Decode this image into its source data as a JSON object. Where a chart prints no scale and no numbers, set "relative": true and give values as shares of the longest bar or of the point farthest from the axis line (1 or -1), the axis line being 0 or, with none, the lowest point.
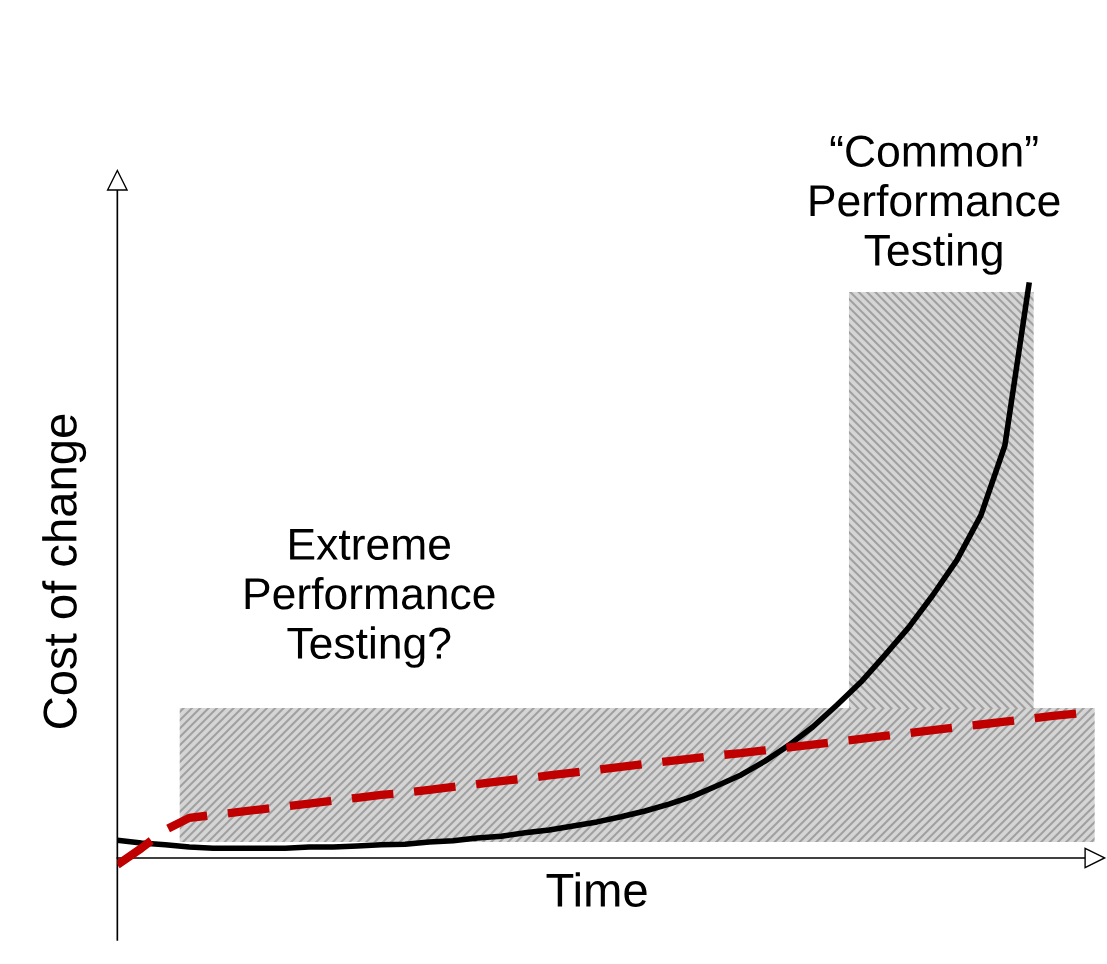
{
  "chart_data": {
    "type": "line",
    "relative": true,
    "xlabel": "Time",
    "ylabel": "Cost of change",
    "categories": [
      null,
      null,
      null,
      null,
      null,
      null,
      null,
      null,
      null,
      null,
      null,
      null,
      null,
      null,
      null,
      null,
      null,
      null,
      null,
      null,
      null,
      null,
      null,
      null,
      null,
      null,
      null,
      null,
      null,
      null,
      null,
      null,
      null,
      null,
      null,
      null,
      null,
      null,
      null,
      null,
      null
    ],
    "series": [
      {
        "color": "#000000",
        "line_style": "solid",
        "values": [
          0.031,
          0.026,
          0.023,
          0.019,
          0.017,
          0.017,
          0.017,
          0.017,
          0.019,
          0.019,
          0.021,
          0.023,
          0.024,
          0.028,
          0.03,
          0.035,
          0.038,
          0.044,
          0.049,
          0.056,
          0.063,
          0.072,
          0.082,
          0.094,
          0.108,
          0.126,
          0.145,
          0.169,
          0.197,
          0.229,
          0.267,
          0.307,
          0.354,
          0.403,
          0.459,
          0.52,
          0.598,
          0.72,
          1.0,
          null,
          null
        ]
      },
      {
        "color": "#c00000",
        "line_style": "dashed",
        "values": [
          -0.012,
          0.017,
          0.049,
          0.07,
          0.075,
          0.08,
          0.085,
          0.09,
          0.095,
          0.1,
          0.105,
          0.11,
          0.114,
          0.119,
          0.124,
          0.129,
          0.134,
          0.139,
          0.144,
          0.149,
          0.154,
          0.159,
          0.164,
          0.169,
          0.174,
          0.179,
          0.183,
          0.188,
          0.193,
          0.198,
          0.203,
          0.208,
          0.213,
          0.218,
          0.223,
          0.228,
          0.233,
          0.238,
          0.243,
          0.248,
          0.252
        ]
      }
    ],
    "bands": [
      {
        "axis": "y",
        "from": 0.028,
        "to": 0.262,
        "label": "Extreme\nPerformance\nTesting?",
        "color": "#d0d0d0"
      }
    ],
    "annotations": [
      "“Common”\nPerformance\nTesting"
    ],
    "marker": "none"
  }
}
